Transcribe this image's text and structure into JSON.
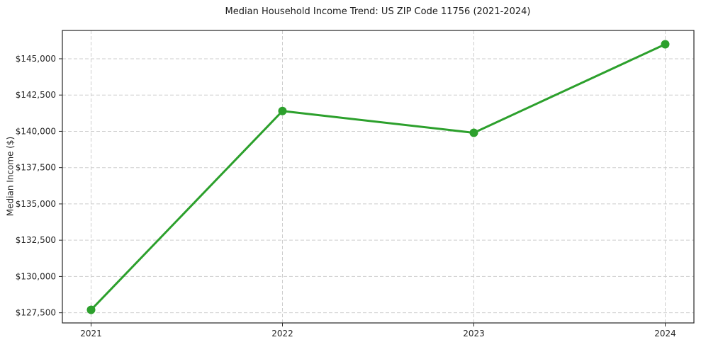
{
  "chart_data": {
    "type": "line",
    "title": "Median Household Income Trend: US ZIP Code 11756 (2021-2024)",
    "xlabel": "",
    "ylabel": "Median Income ($)",
    "x": [
      2021,
      2022,
      2023,
      2024
    ],
    "values": [
      127700,
      141400,
      139900,
      146000
    ],
    "line_color": "#2ca02c",
    "marker": "circle",
    "xticks": {
      "values": [
        2021,
        2022,
        2023,
        2024
      ],
      "labels": [
        "2021",
        "2022",
        "2023",
        "2024"
      ]
    },
    "yticks": {
      "values": [
        127500,
        130000,
        132500,
        135000,
        137500,
        140000,
        142500,
        145000
      ],
      "labels": [
        "$127,500",
        "$130,000",
        "$132,500",
        "$135,000",
        "$137,500",
        "$140,000",
        "$142,500",
        "$145,000"
      ]
    },
    "xlim": [
      2020.85,
      2024.15
    ],
    "ylim": [
      126800,
      146950
    ],
    "grid": {
      "on": true,
      "style": "dashed",
      "color": "#cdcdcd"
    },
    "legend": "none"
  }
}
